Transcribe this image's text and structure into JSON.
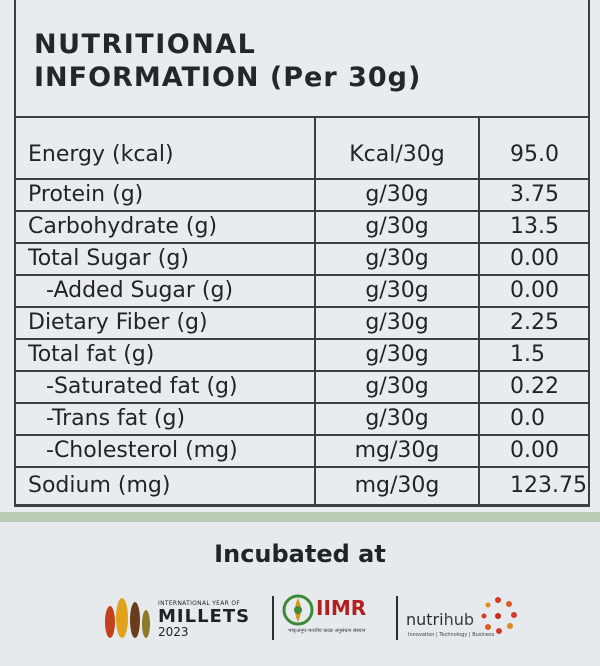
{
  "title": {
    "line1": "NUTRITIONAL",
    "line2": "INFORMATION (Per 30g)"
  },
  "table": {
    "rows": [
      {
        "name": "Energy (kcal)",
        "unit": "Kcal/30g",
        "value": "95.0",
        "indent": false
      },
      {
        "name": "Protein (g)",
        "unit": "g/30g",
        "value": "3.75",
        "indent": false
      },
      {
        "name": "Carbohydrate  (g)",
        "unit": "g/30g",
        "value": "13.5",
        "indent": false
      },
      {
        "name": "Total Sugar (g)",
        "unit": "g/30g",
        "value": "0.00",
        "indent": false
      },
      {
        "name": "-Added Sugar (g)",
        "unit": "g/30g",
        "value": "0.00",
        "indent": true
      },
      {
        "name": "Dietary Fiber (g)",
        "unit": "g/30g",
        "value": "2.25",
        "indent": false
      },
      {
        "name": "Total fat (g)",
        "unit": "g/30g",
        "value": "1.5",
        "indent": false
      },
      {
        "name": "-Saturated fat (g)",
        "unit": "g/30g",
        "value": "0.22",
        "indent": true
      },
      {
        "name": "-Trans fat (g)",
        "unit": "g/30g",
        "value": "0.0",
        "indent": true
      },
      {
        "name": "-Cholesterol (mg)",
        "unit": "mg/30g",
        "value": "0.00",
        "indent": true
      },
      {
        "name": "Sodium (mg)",
        "unit": "mg/30g",
        "value": "123.75",
        "indent": false
      }
    ]
  },
  "footer": {
    "incubated": "Incubated at",
    "millets": {
      "small": "INTERNATIONAL YEAR OF",
      "big": "MILLETS",
      "year": "2023"
    },
    "iimr": {
      "name": "IIMR",
      "subtitle": "भाकृअनुप-भारतीय कदन्न अनुसंधान संस्थान"
    },
    "nutrihub": {
      "name_a": "nutri",
      "name_b": "hub",
      "tagline": "Innovation | Technology | Business"
    }
  },
  "colors": {
    "ink": "#1e2226",
    "border": "#3a3f44",
    "background": "#e9ecee",
    "accent_green": "#b9cbb2",
    "iimr_red": "#b21f1f"
  }
}
